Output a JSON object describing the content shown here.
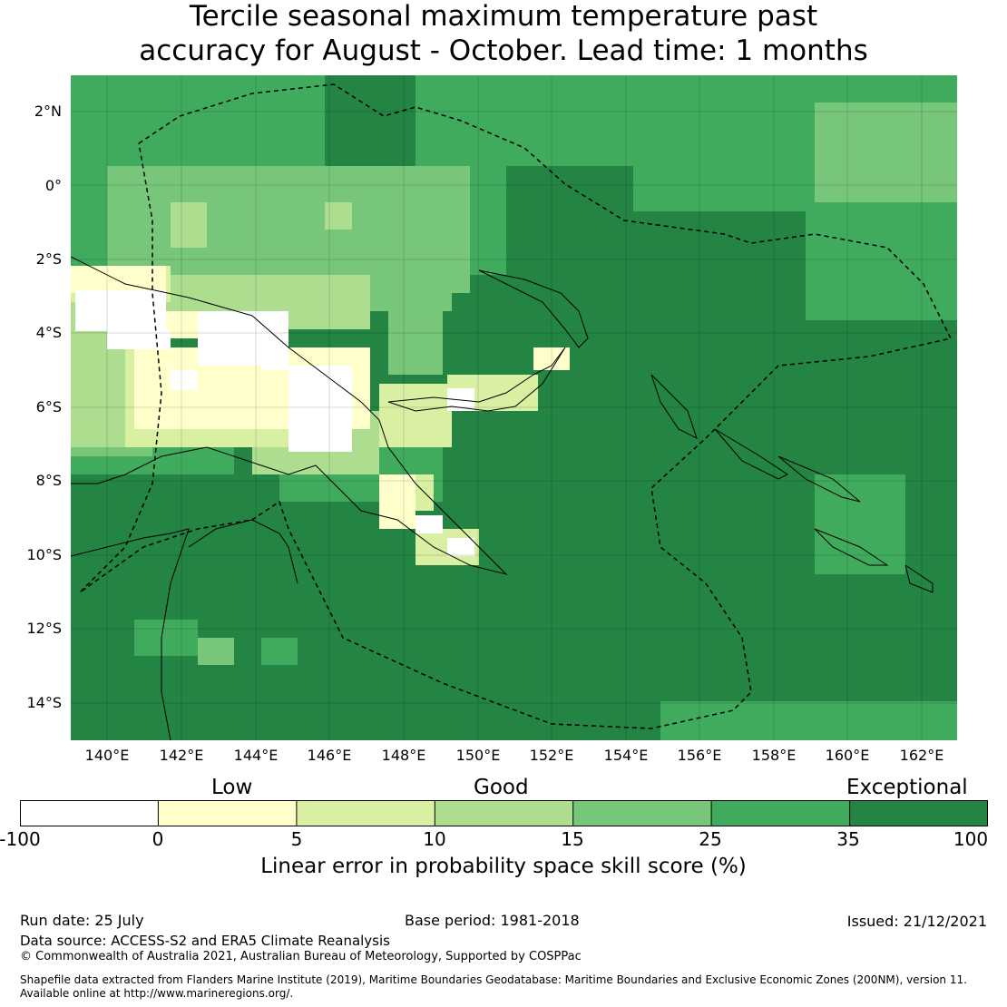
{
  "title_line1": "Tercile seasonal maximum temperature past",
  "title_line2": "accuracy for August - October. Lead time: 1 months",
  "lat_labels": [
    "2°N",
    "0°",
    "2°S",
    "4°S",
    "6°S",
    "8°S",
    "10°S",
    "12°S",
    "14°S"
  ],
  "lon_labels": [
    "140°E",
    "142°E",
    "144°E",
    "146°E",
    "148°E",
    "150°E",
    "152°E",
    "154°E",
    "156°E",
    "158°E",
    "160°E",
    "162°E"
  ],
  "colorbar": {
    "categories": [
      "Low",
      "Good",
      "Exceptional"
    ],
    "ticks": [
      "-100",
      "0",
      "5",
      "10",
      "15",
      "25",
      "35",
      "100"
    ],
    "colors": [
      "#ffffff",
      "#ffffcc",
      "#d9f0a3",
      "#addd8e",
      "#78c679",
      "#41ab5d",
      "#238443"
    ],
    "label": "Linear error in probability space skill score (%)"
  },
  "footer": {
    "run_date": "Run date: 25 July",
    "base_period": "Base period: 1981-2018",
    "issued": "Issued: 21/12/2021",
    "data_source": "Data source: ACCESS-S2 and ERA5 Climate Reanalysis",
    "copyright": "© Commonwealth of Australia 2021, Australian Bureau of Meteorology, Supported by COSPPac",
    "shapefile_line1": "Shapefile data extracted from Flanders Marine Institute (2019), Maritime Boundaries Geodatabase: Maritime Boundaries and Exclusive Economic Zones (200NM), version 11.",
    "shapefile_line2": "Available online at http://www.marineregions.org/."
  }
}
